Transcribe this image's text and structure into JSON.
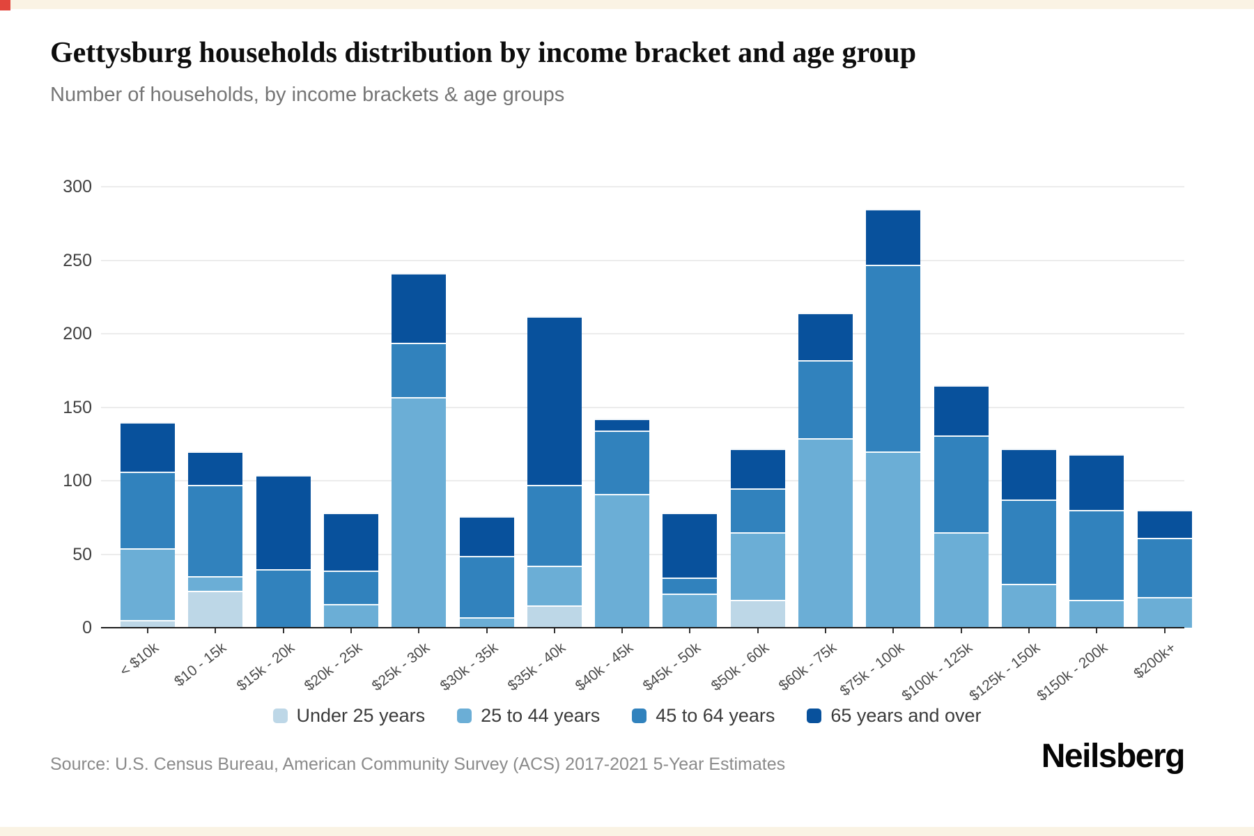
{
  "page": {
    "title": "Gettysburg households distribution by income bracket and age group",
    "subtitle": "Number of households, by income brackets & age groups",
    "source": "Source: U.S. Census Bureau, American Community Survey (ACS) 2017-2021 5-Year Estimates",
    "brand": "Neilsberg"
  },
  "colors": {
    "under_25": "#bdd7e7",
    "age_25_44": "#6baed6",
    "age_45_64": "#3182bd",
    "age_65_over": "#08519c",
    "axis_line": "#1c1c1c",
    "gridline": "#ececec",
    "corner_accent": "#e2453c"
  },
  "chart_data": {
    "type": "bar",
    "stacked": true,
    "title": "Gettysburg households distribution by income bracket and age group",
    "subtitle": "Number of households, by income brackets & age groups",
    "xlabel": "",
    "ylabel": "Number of households",
    "ylim": [
      0,
      300
    ],
    "y_ticks": [
      0,
      50,
      100,
      150,
      200,
      250,
      300
    ],
    "grid": true,
    "legend_position": "bottom",
    "categories": [
      "< $10k",
      "$10 - 15k",
      "$15k - 20k",
      "$20k - 25k",
      "$25k - 30k",
      "$30k - 35k",
      "$35k - 40k",
      "$40k - 45k",
      "$45k - 50k",
      "$50k - 60k",
      "$60k - 75k",
      "$75k - 100k",
      "$100k - 125k",
      "$125k - 150k",
      "$150k - 200k",
      "$200k+"
    ],
    "series": [
      {
        "name": "Under 25 years",
        "color": "#bdd7e7",
        "values": [
          5,
          25,
          0,
          0,
          0,
          0,
          15,
          0,
          0,
          19,
          0,
          0,
          0,
          0,
          0,
          0
        ]
      },
      {
        "name": "25 to 44 years",
        "color": "#6baed6",
        "values": [
          49,
          10,
          0,
          16,
          157,
          7,
          27,
          91,
          23,
          46,
          129,
          120,
          65,
          30,
          19,
          21
        ]
      },
      {
        "name": "45 to 64 years",
        "color": "#3182bd",
        "values": [
          52,
          62,
          40,
          23,
          37,
          42,
          55,
          43,
          11,
          30,
          53,
          127,
          66,
          57,
          61,
          40
        ]
      },
      {
        "name": "65 years and over",
        "color": "#08519c",
        "values": [
          34,
          23,
          64,
          39,
          47,
          27,
          115,
          8,
          44,
          27,
          32,
          38,
          34,
          35,
          38,
          19
        ]
      }
    ],
    "totals": [
      140,
      120,
      104,
      78,
      241,
      76,
      212,
      142,
      78,
      122,
      214,
      285,
      165,
      122,
      118,
      80
    ]
  }
}
